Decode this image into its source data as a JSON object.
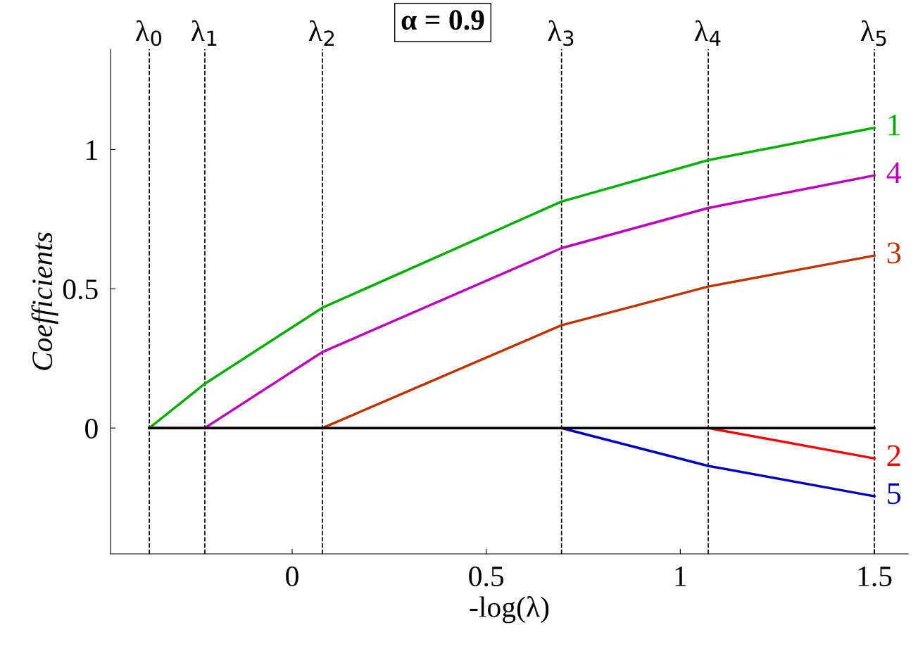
{
  "chart_data": {
    "type": "line",
    "title": "α = 0.9",
    "xlabel": "-log(λ)",
    "ylabel": "Coefficients",
    "x": [
      -0.368,
      -0.225,
      0.078,
      0.694,
      1.072,
      1.5
    ],
    "series": [
      {
        "name": "1",
        "color": "#00b000",
        "values": [
          0,
          0.159,
          0.432,
          0.813,
          0.962,
          1.078
        ]
      },
      {
        "name": "4",
        "color": "#bf00bf",
        "values": [
          0,
          0,
          0.273,
          0.646,
          0.79,
          0.907
        ]
      },
      {
        "name": "3",
        "color": "#bf3300",
        "values": [
          0,
          0,
          0,
          0.369,
          0.508,
          0.619
        ]
      },
      {
        "name": "2",
        "color": "#ff0000",
        "values": [
          null,
          null,
          null,
          null,
          0,
          -0.109
        ]
      },
      {
        "name": "5",
        "color": "#0000bf",
        "values": [
          null,
          null,
          null,
          0,
          -0.136,
          -0.245
        ]
      },
      {
        "color": "#000000",
        "values": [
          0,
          0,
          0,
          0,
          0,
          0
        ]
      }
    ],
    "ref_lines": [
      {
        "axis": "x",
        "value": -0.368,
        "label": "λ$_{0}$",
        "color": "#000000",
        "line_style": "dashed"
      },
      {
        "axis": "x",
        "value": -0.225,
        "label": "λ$_{1}$",
        "color": "#000000",
        "line_style": "dashed"
      },
      {
        "axis": "x",
        "value": 0.078,
        "label": "λ$_{2}$",
        "color": "#000000",
        "line_style": "dashed"
      },
      {
        "axis": "x",
        "value": 0.694,
        "label": "λ$_{3}$",
        "color": "#000000",
        "line_style": "dashed"
      },
      {
        "axis": "x",
        "value": 1.072,
        "label": "λ$_{4}$",
        "color": "#000000",
        "line_style": "dashed"
      },
      {
        "axis": "x",
        "value": 1.5,
        "label": "λ$_{5}$",
        "color": "#000000",
        "line_style": "dashed"
      }
    ],
    "xlim": [
      -0.468,
      1.587
    ],
    "ylim": [
      -0.452,
      1.36
    ],
    "xticks": [
      0,
      0.5,
      1,
      1.5
    ],
    "yticks": [
      0,
      0.5,
      1
    ],
    "grid": false,
    "legend": false,
    "marker": "none",
    "line_style": "solid"
  }
}
